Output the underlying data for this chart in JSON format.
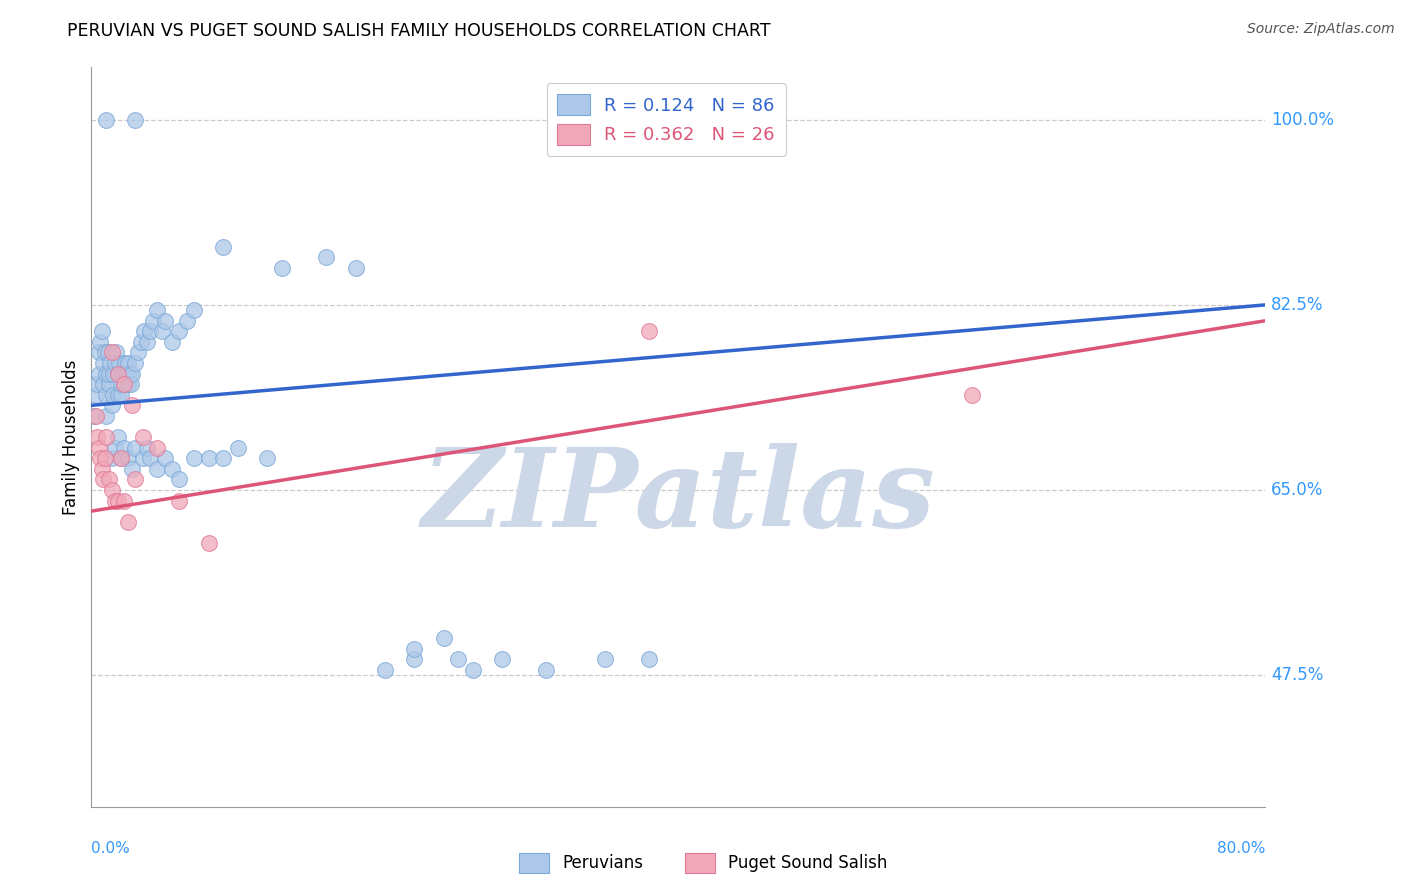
{
  "title": "PERUVIAN VS PUGET SOUND SALISH FAMILY HOUSEHOLDS CORRELATION CHART",
  "source": "Source: ZipAtlas.com",
  "ylabel": "Family Households",
  "xlim": [
    0.0,
    0.8
  ],
  "ylim": [
    0.35,
    1.05
  ],
  "yticks": [
    0.475,
    0.65,
    0.825,
    1.0
  ],
  "ytick_labels": [
    "47.5%",
    "65.0%",
    "82.5%",
    "100.0%"
  ],
  "blue_R": 0.124,
  "blue_N": 86,
  "pink_R": 0.362,
  "pink_N": 26,
  "blue_color": "#adc8e8",
  "pink_color": "#f0a8b8",
  "blue_edge_color": "#7aa8d8",
  "pink_edge_color": "#e07898",
  "blue_line_color": "#3366cc",
  "pink_line_color": "#dd5577",
  "background_color": "#ffffff",
  "watermark": "ZIPatlas",
  "watermark_color": "#ccd8e8",
  "legend_label_blue": "Peruvians",
  "legend_label_pink": "Puget Sound Salish",
  "blue_line_x0": 0.0,
  "blue_line_y0": 0.73,
  "blue_line_x1": 0.8,
  "blue_line_y1": 0.825,
  "pink_line_x0": 0.0,
  "pink_line_y0": 0.63,
  "pink_line_x1": 0.8,
  "pink_line_y1": 0.81,
  "blue_pts_x": [
    0.002,
    0.003,
    0.004,
    0.005,
    0.005,
    0.006,
    0.007,
    0.008,
    0.008,
    0.009,
    0.01,
    0.01,
    0.01,
    0.011,
    0.012,
    0.012,
    0.013,
    0.014,
    0.015,
    0.015,
    0.016,
    0.017,
    0.018,
    0.018,
    0.019,
    0.02,
    0.02,
    0.021,
    0.022,
    0.023,
    0.024,
    0.025,
    0.025,
    0.026,
    0.027,
    0.028,
    0.03,
    0.032,
    0.034,
    0.036,
    0.038,
    0.04,
    0.042,
    0.045,
    0.048,
    0.05,
    0.055,
    0.06,
    0.065,
    0.07,
    0.014,
    0.016,
    0.018,
    0.02,
    0.022,
    0.025,
    0.028,
    0.03,
    0.035,
    0.038,
    0.04,
    0.045,
    0.05,
    0.055,
    0.06,
    0.07,
    0.08,
    0.09,
    0.1,
    0.12,
    0.09,
    0.13,
    0.16,
    0.18,
    0.2,
    0.22,
    0.25,
    0.28,
    0.31,
    0.35,
    0.38,
    0.22,
    0.24,
    0.26,
    0.01,
    0.03
  ],
  "blue_pts_y": [
    0.72,
    0.74,
    0.75,
    0.76,
    0.78,
    0.79,
    0.8,
    0.75,
    0.77,
    0.78,
    0.72,
    0.74,
    0.76,
    0.78,
    0.75,
    0.76,
    0.77,
    0.73,
    0.74,
    0.76,
    0.77,
    0.78,
    0.74,
    0.76,
    0.77,
    0.74,
    0.75,
    0.76,
    0.75,
    0.77,
    0.76,
    0.77,
    0.75,
    0.76,
    0.75,
    0.76,
    0.77,
    0.78,
    0.79,
    0.8,
    0.79,
    0.8,
    0.81,
    0.82,
    0.8,
    0.81,
    0.79,
    0.8,
    0.81,
    0.82,
    0.68,
    0.69,
    0.7,
    0.68,
    0.69,
    0.68,
    0.67,
    0.69,
    0.68,
    0.69,
    0.68,
    0.67,
    0.68,
    0.67,
    0.66,
    0.68,
    0.68,
    0.68,
    0.69,
    0.68,
    0.88,
    0.86,
    0.87,
    0.86,
    0.48,
    0.49,
    0.49,
    0.49,
    0.48,
    0.49,
    0.49,
    0.5,
    0.51,
    0.48,
    1.0,
    1.0
  ],
  "pink_pts_x": [
    0.003,
    0.004,
    0.005,
    0.006,
    0.007,
    0.008,
    0.009,
    0.01,
    0.012,
    0.014,
    0.016,
    0.018,
    0.02,
    0.022,
    0.025,
    0.03,
    0.014,
    0.018,
    0.022,
    0.028,
    0.035,
    0.045,
    0.06,
    0.08,
    0.38,
    0.6
  ],
  "pink_pts_y": [
    0.72,
    0.7,
    0.69,
    0.68,
    0.67,
    0.66,
    0.68,
    0.7,
    0.66,
    0.65,
    0.64,
    0.64,
    0.68,
    0.64,
    0.62,
    0.66,
    0.78,
    0.76,
    0.75,
    0.73,
    0.7,
    0.69,
    0.64,
    0.6,
    0.8,
    0.74
  ]
}
